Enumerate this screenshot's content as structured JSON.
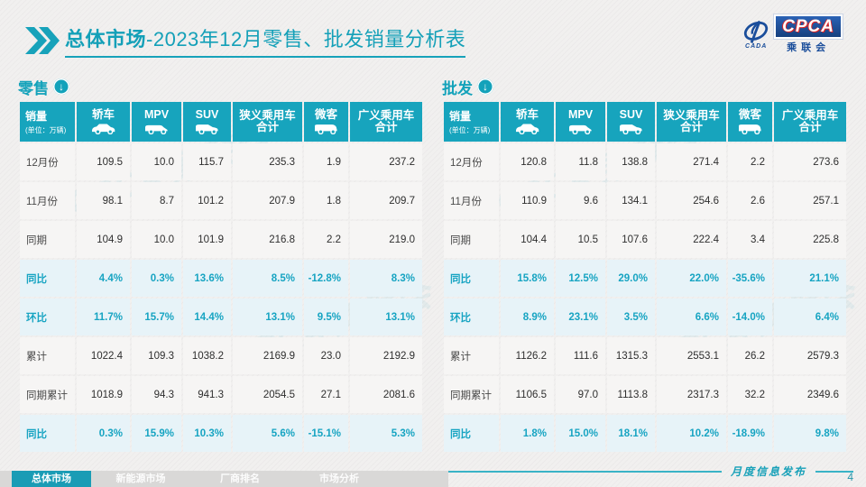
{
  "title": {
    "prefix": "总体市场",
    "rest": "-2023年12月零售、批发销量分析表"
  },
  "logo": {
    "cpca": "CPCA",
    "sub": "乘联会",
    "small": "CADA"
  },
  "unit": {
    "name": "销量",
    "sub": "(单位：万辆)"
  },
  "columns": [
    {
      "label": "轿车",
      "icon": "sedan-icon"
    },
    {
      "label": "MPV",
      "icon": "mpv-icon"
    },
    {
      "label": "SUV",
      "icon": "suv-icon"
    },
    {
      "label": "狭义乘用车合计",
      "icon": null
    },
    {
      "label": "微客",
      "icon": "microvan-icon"
    },
    {
      "label": "广义乘用车合计",
      "icon": null
    }
  ],
  "tables": [
    {
      "section": "零售",
      "rows": [
        {
          "label": "12月份",
          "type": "normal",
          "values": [
            "109.5",
            "10.0",
            "115.7",
            "235.3",
            "1.9",
            "237.2"
          ]
        },
        {
          "label": "11月份",
          "type": "normal",
          "values": [
            "98.1",
            "8.7",
            "101.2",
            "207.9",
            "1.8",
            "209.7"
          ]
        },
        {
          "label": "同期",
          "type": "normal",
          "values": [
            "104.9",
            "10.0",
            "101.9",
            "216.8",
            "2.2",
            "219.0"
          ]
        },
        {
          "label": "同比",
          "type": "ratio",
          "values": [
            "4.4%",
            "0.3%",
            "13.6%",
            "8.5%",
            "-12.8%",
            "8.3%"
          ]
        },
        {
          "label": "环比",
          "type": "ratio",
          "values": [
            "11.7%",
            "15.7%",
            "14.4%",
            "13.1%",
            "9.5%",
            "13.1%"
          ]
        },
        {
          "label": "累计",
          "type": "normal",
          "values": [
            "1022.4",
            "109.3",
            "1038.2",
            "2169.9",
            "23.0",
            "2192.9"
          ]
        },
        {
          "label": "同期累计",
          "type": "normal",
          "values": [
            "1018.9",
            "94.3",
            "941.3",
            "2054.5",
            "27.1",
            "2081.6"
          ]
        },
        {
          "label": "同比",
          "type": "ratio",
          "values": [
            "0.3%",
            "15.9%",
            "10.3%",
            "5.6%",
            "-15.1%",
            "5.3%"
          ]
        }
      ]
    },
    {
      "section": "批发",
      "rows": [
        {
          "label": "12月份",
          "type": "normal",
          "values": [
            "120.8",
            "11.8",
            "138.8",
            "271.4",
            "2.2",
            "273.6"
          ]
        },
        {
          "label": "11月份",
          "type": "normal",
          "values": [
            "110.9",
            "9.6",
            "134.1",
            "254.6",
            "2.6",
            "257.1"
          ]
        },
        {
          "label": "同期",
          "type": "normal",
          "values": [
            "104.4",
            "10.5",
            "107.6",
            "222.4",
            "3.4",
            "225.8"
          ]
        },
        {
          "label": "同比",
          "type": "ratio",
          "values": [
            "15.8%",
            "12.5%",
            "29.0%",
            "22.0%",
            "-35.6%",
            "21.1%"
          ]
        },
        {
          "label": "环比",
          "type": "ratio",
          "values": [
            "8.9%",
            "23.1%",
            "3.5%",
            "6.6%",
            "-14.0%",
            "6.4%"
          ]
        },
        {
          "label": "累计",
          "type": "normal",
          "values": [
            "1126.2",
            "111.6",
            "1315.3",
            "2553.1",
            "26.2",
            "2579.3"
          ]
        },
        {
          "label": "同期累计",
          "type": "normal",
          "values": [
            "1106.5",
            "97.0",
            "1113.8",
            "2317.3",
            "32.2",
            "2349.6"
          ]
        },
        {
          "label": "同比",
          "type": "ratio",
          "values": [
            "1.8%",
            "15.0%",
            "18.1%",
            "10.2%",
            "-18.9%",
            "9.8%"
          ]
        }
      ]
    }
  ],
  "footer": {
    "publish": "月度信息发布",
    "page": "4",
    "tabs": [
      {
        "label": "总体市场",
        "active": true
      },
      {
        "label": "新能源市场",
        "active": false
      },
      {
        "label": "厂商排名",
        "active": false
      },
      {
        "label": "市场分析",
        "active": false
      }
    ]
  },
  "watermark": "CPCA 乘联会",
  "colors": {
    "accent": "#17a2ba",
    "header_bg": "#17a4bd",
    "ratio_bg": "#e7f3f8",
    "logo_blue": "#1b4e9b"
  }
}
